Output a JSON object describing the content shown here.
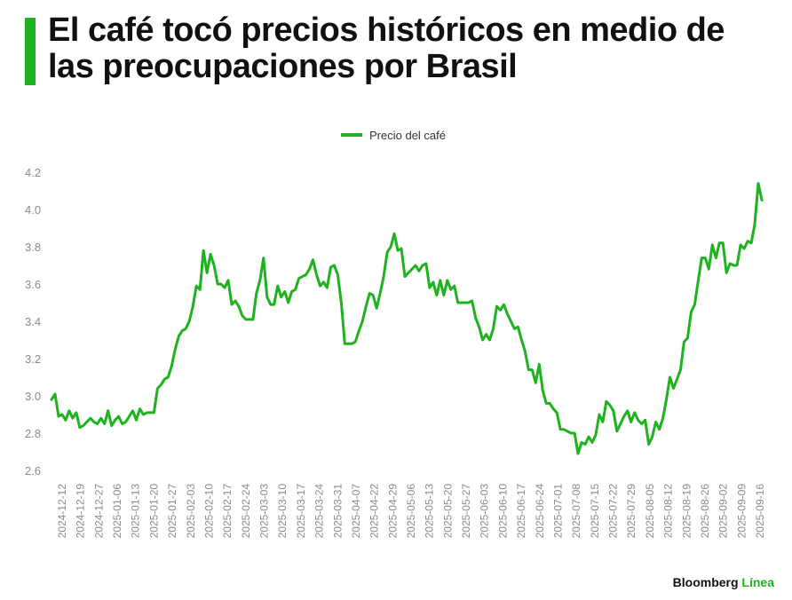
{
  "header": {
    "title": "El café tocó precios históricos en medio de las preocupaciones por Brasil"
  },
  "brand": {
    "name": "Bloomberg",
    "accent": "Línea"
  },
  "colors": {
    "series": "#1fb21f",
    "text": "#111111",
    "ticks": "#8a8a8a"
  },
  "chart_data": {
    "type": "line",
    "legend": "top-center",
    "grid": false,
    "ylim": [
      2.6,
      4.2
    ],
    "yticks": [
      "2.6",
      "2.8",
      "3.0",
      "3.2",
      "3.4",
      "3.6",
      "3.8",
      "4.0",
      "4.2"
    ],
    "xticks": [
      "2024-12-12",
      "2024-12-19",
      "2024-12-27",
      "2025-01-06",
      "2025-01-13",
      "2025-01-20",
      "2025-01-27",
      "2025-02-03",
      "2025-02-10",
      "2025-02-17",
      "2025-02-24",
      "2025-03-03",
      "2025-03-10",
      "2025-03-17",
      "2025-03-24",
      "2025-03-31",
      "2025-04-07",
      "2025-04-22",
      "2025-04-29",
      "2025-05-06",
      "2025-05-13",
      "2025-05-20",
      "2025-05-27",
      "2025-06-03",
      "2025-06-10",
      "2025-06-17",
      "2025-06-24",
      "2025-07-01",
      "2025-07-08",
      "2025-07-15",
      "2025-07-22",
      "2025-07-29",
      "2025-08-05",
      "2025-08-12",
      "2025-08-19",
      "2025-08-26",
      "2025-09-02",
      "2025-09-09",
      "2025-09-16"
    ],
    "series": [
      {
        "name": "Precio del café",
        "values": [
          2.98,
          3.01,
          2.89,
          2.9,
          2.87,
          2.92,
          2.88,
          2.91,
          2.83,
          2.84,
          2.86,
          2.88,
          2.86,
          2.85,
          2.88,
          2.85,
          2.92,
          2.84,
          2.87,
          2.89,
          2.85,
          2.86,
          2.89,
          2.92,
          2.87,
          2.93,
          2.9,
          2.91,
          2.91,
          2.91,
          3.04,
          3.06,
          3.09,
          3.1,
          3.16,
          3.25,
          3.32,
          3.35,
          3.36,
          3.4,
          3.48,
          3.59,
          3.57,
          3.78,
          3.66,
          3.76,
          3.7,
          3.6,
          3.6,
          3.58,
          3.62,
          3.49,
          3.51,
          3.48,
          3.43,
          3.41,
          3.41,
          3.41,
          3.55,
          3.62,
          3.74,
          3.53,
          3.49,
          3.49,
          3.59,
          3.53,
          3.56,
          3.5,
          3.56,
          3.57,
          3.63,
          3.64,
          3.65,
          3.68,
          3.73,
          3.65,
          3.59,
          3.61,
          3.58,
          3.69,
          3.7,
          3.65,
          3.5,
          3.28,
          3.28,
          3.28,
          3.29,
          3.35,
          3.4,
          3.48,
          3.55,
          3.54,
          3.47,
          3.55,
          3.64,
          3.77,
          3.8,
          3.87,
          3.78,
          3.79,
          3.64,
          3.66,
          3.68,
          3.7,
          3.67,
          3.7,
          3.71,
          3.58,
          3.61,
          3.54,
          3.62,
          3.54,
          3.62,
          3.57,
          3.59,
          3.5,
          3.5,
          3.5,
          3.5,
          3.51,
          3.42,
          3.37,
          3.3,
          3.33,
          3.3,
          3.36,
          3.48,
          3.46,
          3.49,
          3.44,
          3.4,
          3.36,
          3.37,
          3.3,
          3.24,
          3.14,
          3.14,
          3.07,
          3.17,
          3.03,
          2.96,
          2.96,
          2.93,
          2.91,
          2.82,
          2.82,
          2.81,
          2.8,
          2.8,
          2.69,
          2.75,
          2.74,
          2.78,
          2.75,
          2.79,
          2.9,
          2.86,
          2.97,
          2.95,
          2.92,
          2.81,
          2.85,
          2.89,
          2.92,
          2.86,
          2.91,
          2.87,
          2.85,
          2.87,
          2.74,
          2.78,
          2.86,
          2.82,
          2.88,
          2.98,
          3.1,
          3.04,
          3.09,
          3.14,
          3.29,
          3.31,
          3.45,
          3.49,
          3.62,
          3.74,
          3.74,
          3.68,
          3.81,
          3.74,
          3.82,
          3.82,
          3.66,
          3.71,
          3.7,
          3.7,
          3.81,
          3.79,
          3.83,
          3.82,
          3.92,
          4.14,
          4.05
        ]
      }
    ]
  }
}
